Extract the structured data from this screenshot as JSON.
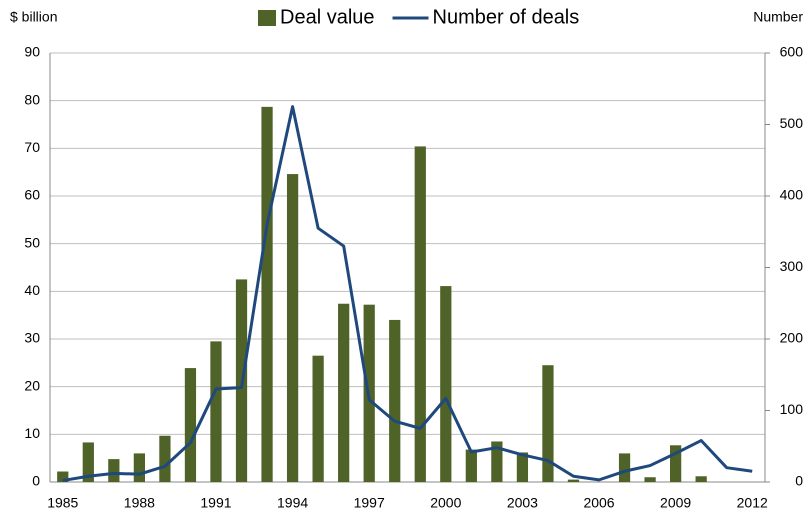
{
  "chart_data": {
    "type": "bar-line",
    "y_label": "$ billion",
    "y2_label": "Number",
    "categories": [
      "1985",
      null,
      null,
      "1988",
      null,
      null,
      "1991",
      null,
      null,
      "1994",
      null,
      null,
      "1997",
      null,
      null,
      "2000",
      null,
      null,
      "2003",
      null,
      null,
      "2006",
      null,
      null,
      "2009",
      null,
      null,
      "2012"
    ],
    "series": [
      {
        "name": "Deal value",
        "type": "bar",
        "color": "#4f6228",
        "values": [
          2.2,
          8.3,
          4.8,
          6.0,
          9.7,
          23.9,
          29.5,
          42.5,
          78.7,
          64.6,
          26.5,
          37.4,
          37.2,
          34.0,
          70.4,
          41.1,
          6.8,
          8.5,
          6.2,
          24.5,
          0.5,
          0,
          6.0,
          1.0,
          7.7,
          1.2,
          0,
          0
        ]
      },
      {
        "name": "Number of deals",
        "type": "line",
        "axis": "y2",
        "color": "#1f497d",
        "values": [
          2,
          8,
          12,
          11,
          22,
          55,
          130,
          132,
          360,
          525,
          355,
          330,
          115,
          85,
          75,
          117,
          42,
          48,
          38,
          30,
          8,
          3,
          15,
          23,
          40,
          58,
          20,
          15
        ]
      }
    ],
    "ylim": [
      0,
      90
    ],
    "yticks": [
      0,
      10,
      20,
      30,
      40,
      50,
      60,
      70,
      80,
      90
    ],
    "y2lim": [
      0,
      600
    ],
    "y2ticks": [
      0,
      100,
      200,
      300,
      400,
      500,
      600
    ],
    "grid": true
  }
}
